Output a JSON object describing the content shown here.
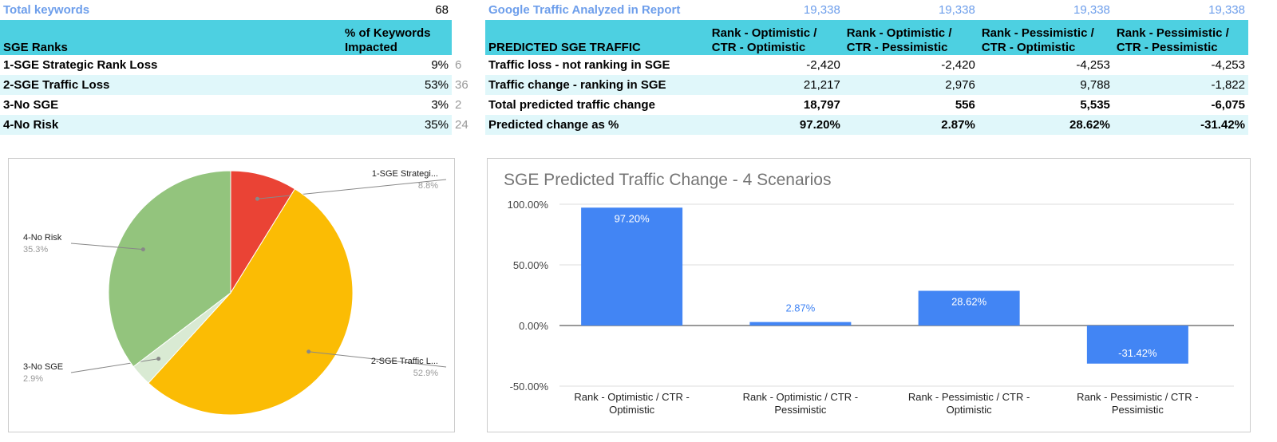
{
  "ranks_table": {
    "total_label": "Total keywords",
    "total_value": "68",
    "headers": [
      "SGE Ranks",
      "% of Keywords Impacted"
    ],
    "rows": [
      {
        "label": "1-SGE Strategic Rank Loss",
        "pct": "9%",
        "count": "6"
      },
      {
        "label": "2-SGE Traffic Loss",
        "pct": "53%",
        "count": "36"
      },
      {
        "label": "3-No SGE",
        "pct": "3%",
        "count": "2"
      },
      {
        "label": "4-No Risk",
        "pct": "35%",
        "count": "24"
      }
    ]
  },
  "traffic_table": {
    "analyzed_label": "Google Traffic Analyzed in Report",
    "analyzed_values": [
      "19,338",
      "19,338",
      "19,338",
      "19,338"
    ],
    "headers": [
      "PREDICTED SGE TRAFFIC",
      "Rank - Optimistic / CTR - Optimistic",
      "Rank - Optimistic / CTR - Pessimistic",
      "Rank - Pessimistic / CTR - Optimistic",
      "Rank - Pessimistic / CTR - Pessimistic"
    ],
    "rows": [
      {
        "label": "Traffic loss - not ranking in SGE",
        "values": [
          "-2,420",
          "-2,420",
          "-4,253",
          "-4,253"
        ],
        "bold": false
      },
      {
        "label": "Traffic change - ranking in SGE",
        "values": [
          "21,217",
          "2,976",
          "9,788",
          "-1,822"
        ],
        "bold": false
      },
      {
        "label": "Total predicted traffic change",
        "values": [
          "18,797",
          "556",
          "5,535",
          "-6,075"
        ],
        "bold": true
      },
      {
        "label": "Predicted change as %",
        "values": [
          "97.20%",
          "2.87%",
          "28.62%",
          "-31.42%"
        ],
        "bold": true
      }
    ]
  },
  "chart_data": [
    {
      "type": "pie",
      "slices": [
        {
          "label": "1-SGE Strategi...",
          "value": 8.8,
          "value_label": "8.8%",
          "color": "#ea4335"
        },
        {
          "label": "2-SGE Traffic L...",
          "value": 52.9,
          "value_label": "52.9%",
          "color": "#fbbc04"
        },
        {
          "label": "3-No SGE",
          "value": 2.9,
          "value_label": "2.9%",
          "color": "#d9ead3"
        },
        {
          "label": "4-No Risk",
          "value": 35.3,
          "value_label": "35.3%",
          "color": "#93c47d"
        }
      ]
    },
    {
      "type": "bar",
      "title": "SGE Predicted Traffic Change - 4 Scenarios",
      "categories": [
        "Rank - Optimistic / CTR - Optimistic",
        "Rank - Optimistic / CTR - Pessimistic",
        "Rank - Pessimistic / CTR - Optimistic",
        "Rank - Pessimistic / CTR - Pessimistic"
      ],
      "category_lines": [
        [
          "Rank - Optimistic / CTR -",
          "Optimistic"
        ],
        [
          "Rank - Optimistic / CTR -",
          "Pessimistic"
        ],
        [
          "Rank - Pessimistic / CTR -",
          "Optimistic"
        ],
        [
          "Rank - Pessimistic / CTR -",
          "Pessimistic"
        ]
      ],
      "values": [
        97.2,
        2.87,
        28.62,
        -31.42
      ],
      "data_labels": [
        "97.20%",
        "2.87%",
        "28.62%",
        "-31.42%"
      ],
      "yticks": [
        100,
        50,
        0,
        -50
      ],
      "ytick_labels": [
        "100.00%",
        "50.00%",
        "0.00%",
        "-50.00%"
      ],
      "ylim": [
        -50,
        100
      ],
      "color": "#4285f4",
      "grid": true
    }
  ]
}
